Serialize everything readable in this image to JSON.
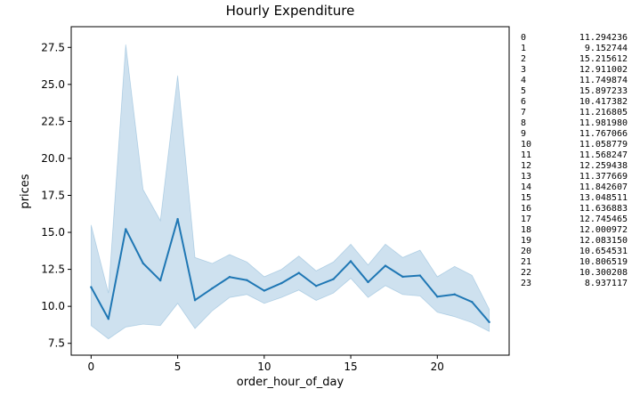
{
  "chart_data": {
    "type": "line",
    "title": "Hourly Expenditure",
    "xlabel": "order_hour_of_day",
    "ylabel": "prices",
    "xlim": [
      -1.15,
      24.15
    ],
    "ylim": [
      6.7,
      28.9
    ],
    "xticks": [
      0,
      5,
      10,
      15,
      20
    ],
    "yticks": [
      7.5,
      10.0,
      12.5,
      15.0,
      17.5,
      20.0,
      22.5,
      25.0,
      27.5
    ],
    "xtick_labels": [
      "0",
      "5",
      "10",
      "15",
      "20"
    ],
    "ytick_labels": [
      "7.5",
      "10.0",
      "12.5",
      "15.0",
      "17.5",
      "20.0",
      "22.5",
      "25.0",
      "27.5"
    ],
    "grid": false,
    "x": [
      0,
      1,
      2,
      3,
      4,
      5,
      6,
      7,
      8,
      9,
      10,
      11,
      12,
      13,
      14,
      15,
      16,
      17,
      18,
      19,
      20,
      21,
      22,
      23
    ],
    "series": [
      {
        "values": [
          11.294236,
          9.152744,
          15.215612,
          12.911002,
          11.749874,
          15.897233,
          10.417382,
          11.216805,
          11.98198,
          11.767066,
          11.058779,
          11.568247,
          12.259438,
          11.377669,
          11.842607,
          13.048511,
          11.636883,
          12.745465,
          12.000972,
          12.08315,
          10.654531,
          10.806519,
          10.300208,
          8.937117
        ],
        "ci_upper": [
          15.5,
          10.9,
          27.7,
          17.9,
          15.8,
          25.6,
          13.3,
          12.9,
          13.5,
          13.0,
          12.0,
          12.5,
          13.4,
          12.4,
          13.0,
          14.2,
          12.8,
          14.2,
          13.3,
          13.8,
          12.0,
          12.7,
          12.1,
          9.8
        ],
        "ci_lower": [
          8.7,
          7.8,
          8.6,
          8.8,
          8.7,
          10.2,
          8.5,
          9.7,
          10.6,
          10.8,
          10.2,
          10.6,
          11.1,
          10.4,
          10.9,
          11.9,
          10.6,
          11.4,
          10.8,
          10.7,
          9.6,
          9.3,
          8.9,
          8.3
        ],
        "color": "#1f77b4",
        "band_color": "#1f77b4"
      }
    ]
  },
  "side_table": {
    "rows": [
      {
        "index": "0",
        "value": "11.294236"
      },
      {
        "index": "1",
        "value": "9.152744"
      },
      {
        "index": "2",
        "value": "15.215612"
      },
      {
        "index": "3",
        "value": "12.911002"
      },
      {
        "index": "4",
        "value": "11.749874"
      },
      {
        "index": "5",
        "value": "15.897233"
      },
      {
        "index": "6",
        "value": "10.417382"
      },
      {
        "index": "7",
        "value": "11.216805"
      },
      {
        "index": "8",
        "value": "11.981980"
      },
      {
        "index": "9",
        "value": "11.767066"
      },
      {
        "index": "10",
        "value": "11.058779"
      },
      {
        "index": "11",
        "value": "11.568247"
      },
      {
        "index": "12",
        "value": "12.259438"
      },
      {
        "index": "13",
        "value": "11.377669"
      },
      {
        "index": "14",
        "value": "11.842607"
      },
      {
        "index": "15",
        "value": "13.048511"
      },
      {
        "index": "16",
        "value": "11.636883"
      },
      {
        "index": "17",
        "value": "12.745465"
      },
      {
        "index": "18",
        "value": "12.000972"
      },
      {
        "index": "19",
        "value": "12.083150"
      },
      {
        "index": "20",
        "value": "10.654531"
      },
      {
        "index": "21",
        "value": "10.806519"
      },
      {
        "index": "22",
        "value": "10.300208"
      },
      {
        "index": "23",
        "value": "8.937117"
      }
    ]
  }
}
